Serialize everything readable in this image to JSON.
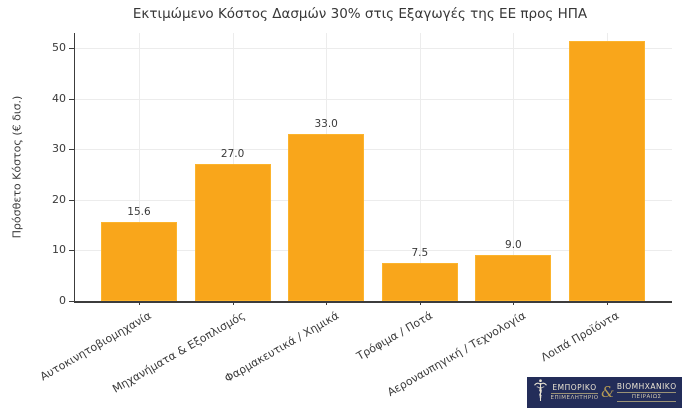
{
  "page": {
    "background_color": "#ffffff"
  },
  "chart_data": {
    "type": "bar",
    "title": "Εκτιμώμενο Κόστος Δασμών 30% στις Εξαγωγές της ΕΕ προς ΗΠΑ",
    "xlabel": "",
    "ylabel": "Πρόσθετο Κόστος (€ δισ.)",
    "categories": [
      "Αυτοκινητοβιομηχανία",
      "Μηχανήματα & Εξοπλισμός",
      "Φαρμακευτικά / Χημικά",
      "Τρόφιμα / Ποτά",
      "Αεροναυπηγική / Τεχνολογία",
      "Λοιπά Προϊόντα"
    ],
    "values": [
      15.6,
      27.0,
      33.0,
      7.5,
      9.0,
      51.4
    ],
    "value_labels": [
      "15.6",
      "27.0",
      "33.0",
      "7.5",
      "9.0",
      ""
    ],
    "yticks": [
      0,
      10,
      20,
      30,
      40,
      50
    ],
    "ylim": [
      0,
      53
    ],
    "grid": true,
    "legend": false,
    "bar_color": "#f9a61b",
    "grid_color": "#ececec",
    "axis_color": "#3c3c3c",
    "text_color": "#3a3a3a"
  },
  "logo": {
    "line1_left": "ΕΜΠΟΡΙΚΟ",
    "line2_left": "ΕΠΙΜΕΛΗΤΗΡΙΟ",
    "line1_right": "ΒΙΟΜΗΧΑΝΙΚΟ",
    "line2_right": "ΠΕΙΡΑΙΩΣ",
    "icons": [
      "caduceus-icon",
      "ampersand-caduceus-glyph"
    ],
    "ampersand_glyph": "&",
    "background_color": "#232d59",
    "text_color": "#ece5d3",
    "accent_color": "#b49a55"
  }
}
